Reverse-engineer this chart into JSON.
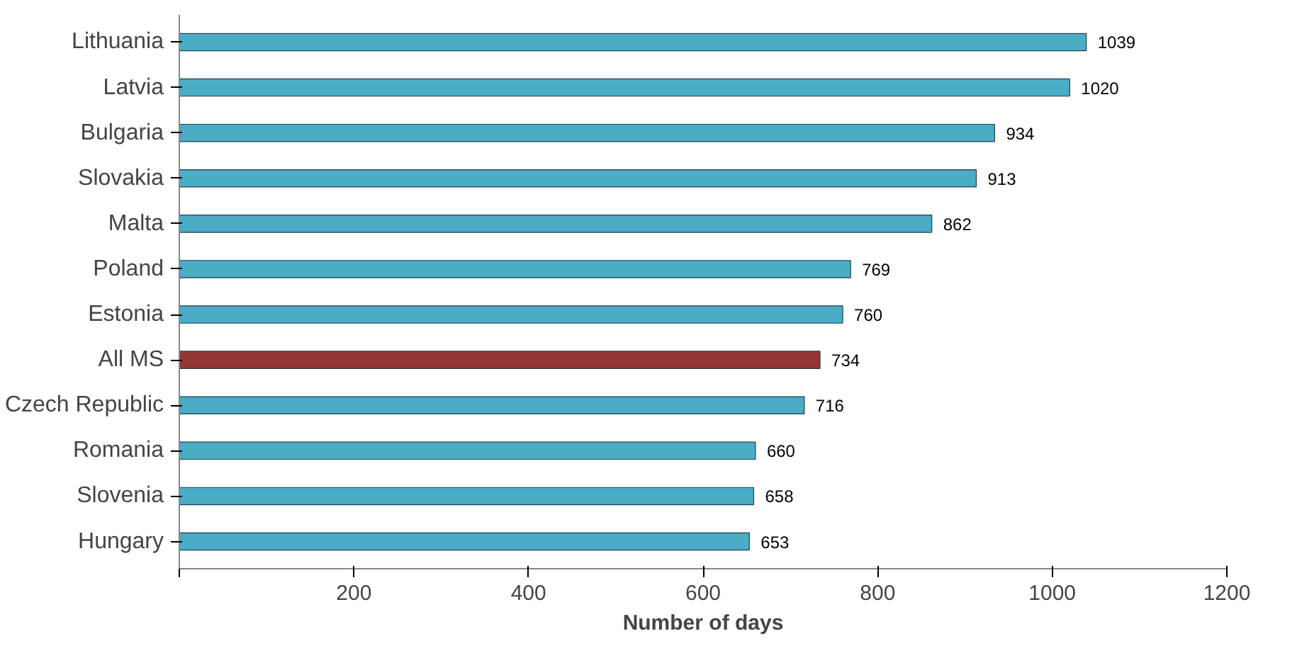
{
  "chart_data": {
    "type": "bar",
    "orientation": "horizontal",
    "xlabel": "Number of days",
    "categories": [
      "Lithuania",
      "Latvia",
      "Bulgaria",
      "Slovakia",
      "Malta",
      "Poland",
      "Estonia",
      "All MS",
      "Czech Republic",
      "Romania",
      "Slovenia",
      "Hungary"
    ],
    "values": [
      1039,
      1020,
      934,
      913,
      862,
      769,
      760,
      734,
      716,
      660,
      658,
      653
    ],
    "colors": [
      "#4bacc6",
      "#4bacc6",
      "#4bacc6",
      "#4bacc6",
      "#4bacc6",
      "#4bacc6",
      "#4bacc6",
      "#943634",
      "#4bacc6",
      "#4bacc6",
      "#4bacc6",
      "#4bacc6"
    ],
    "xlim": [
      0,
      1200
    ],
    "xticks": [
      {
        "value": 0,
        "label": null
      },
      200,
      400,
      600,
      800,
      1000,
      1200
    ],
    "data_labels": true,
    "grid": false
  }
}
